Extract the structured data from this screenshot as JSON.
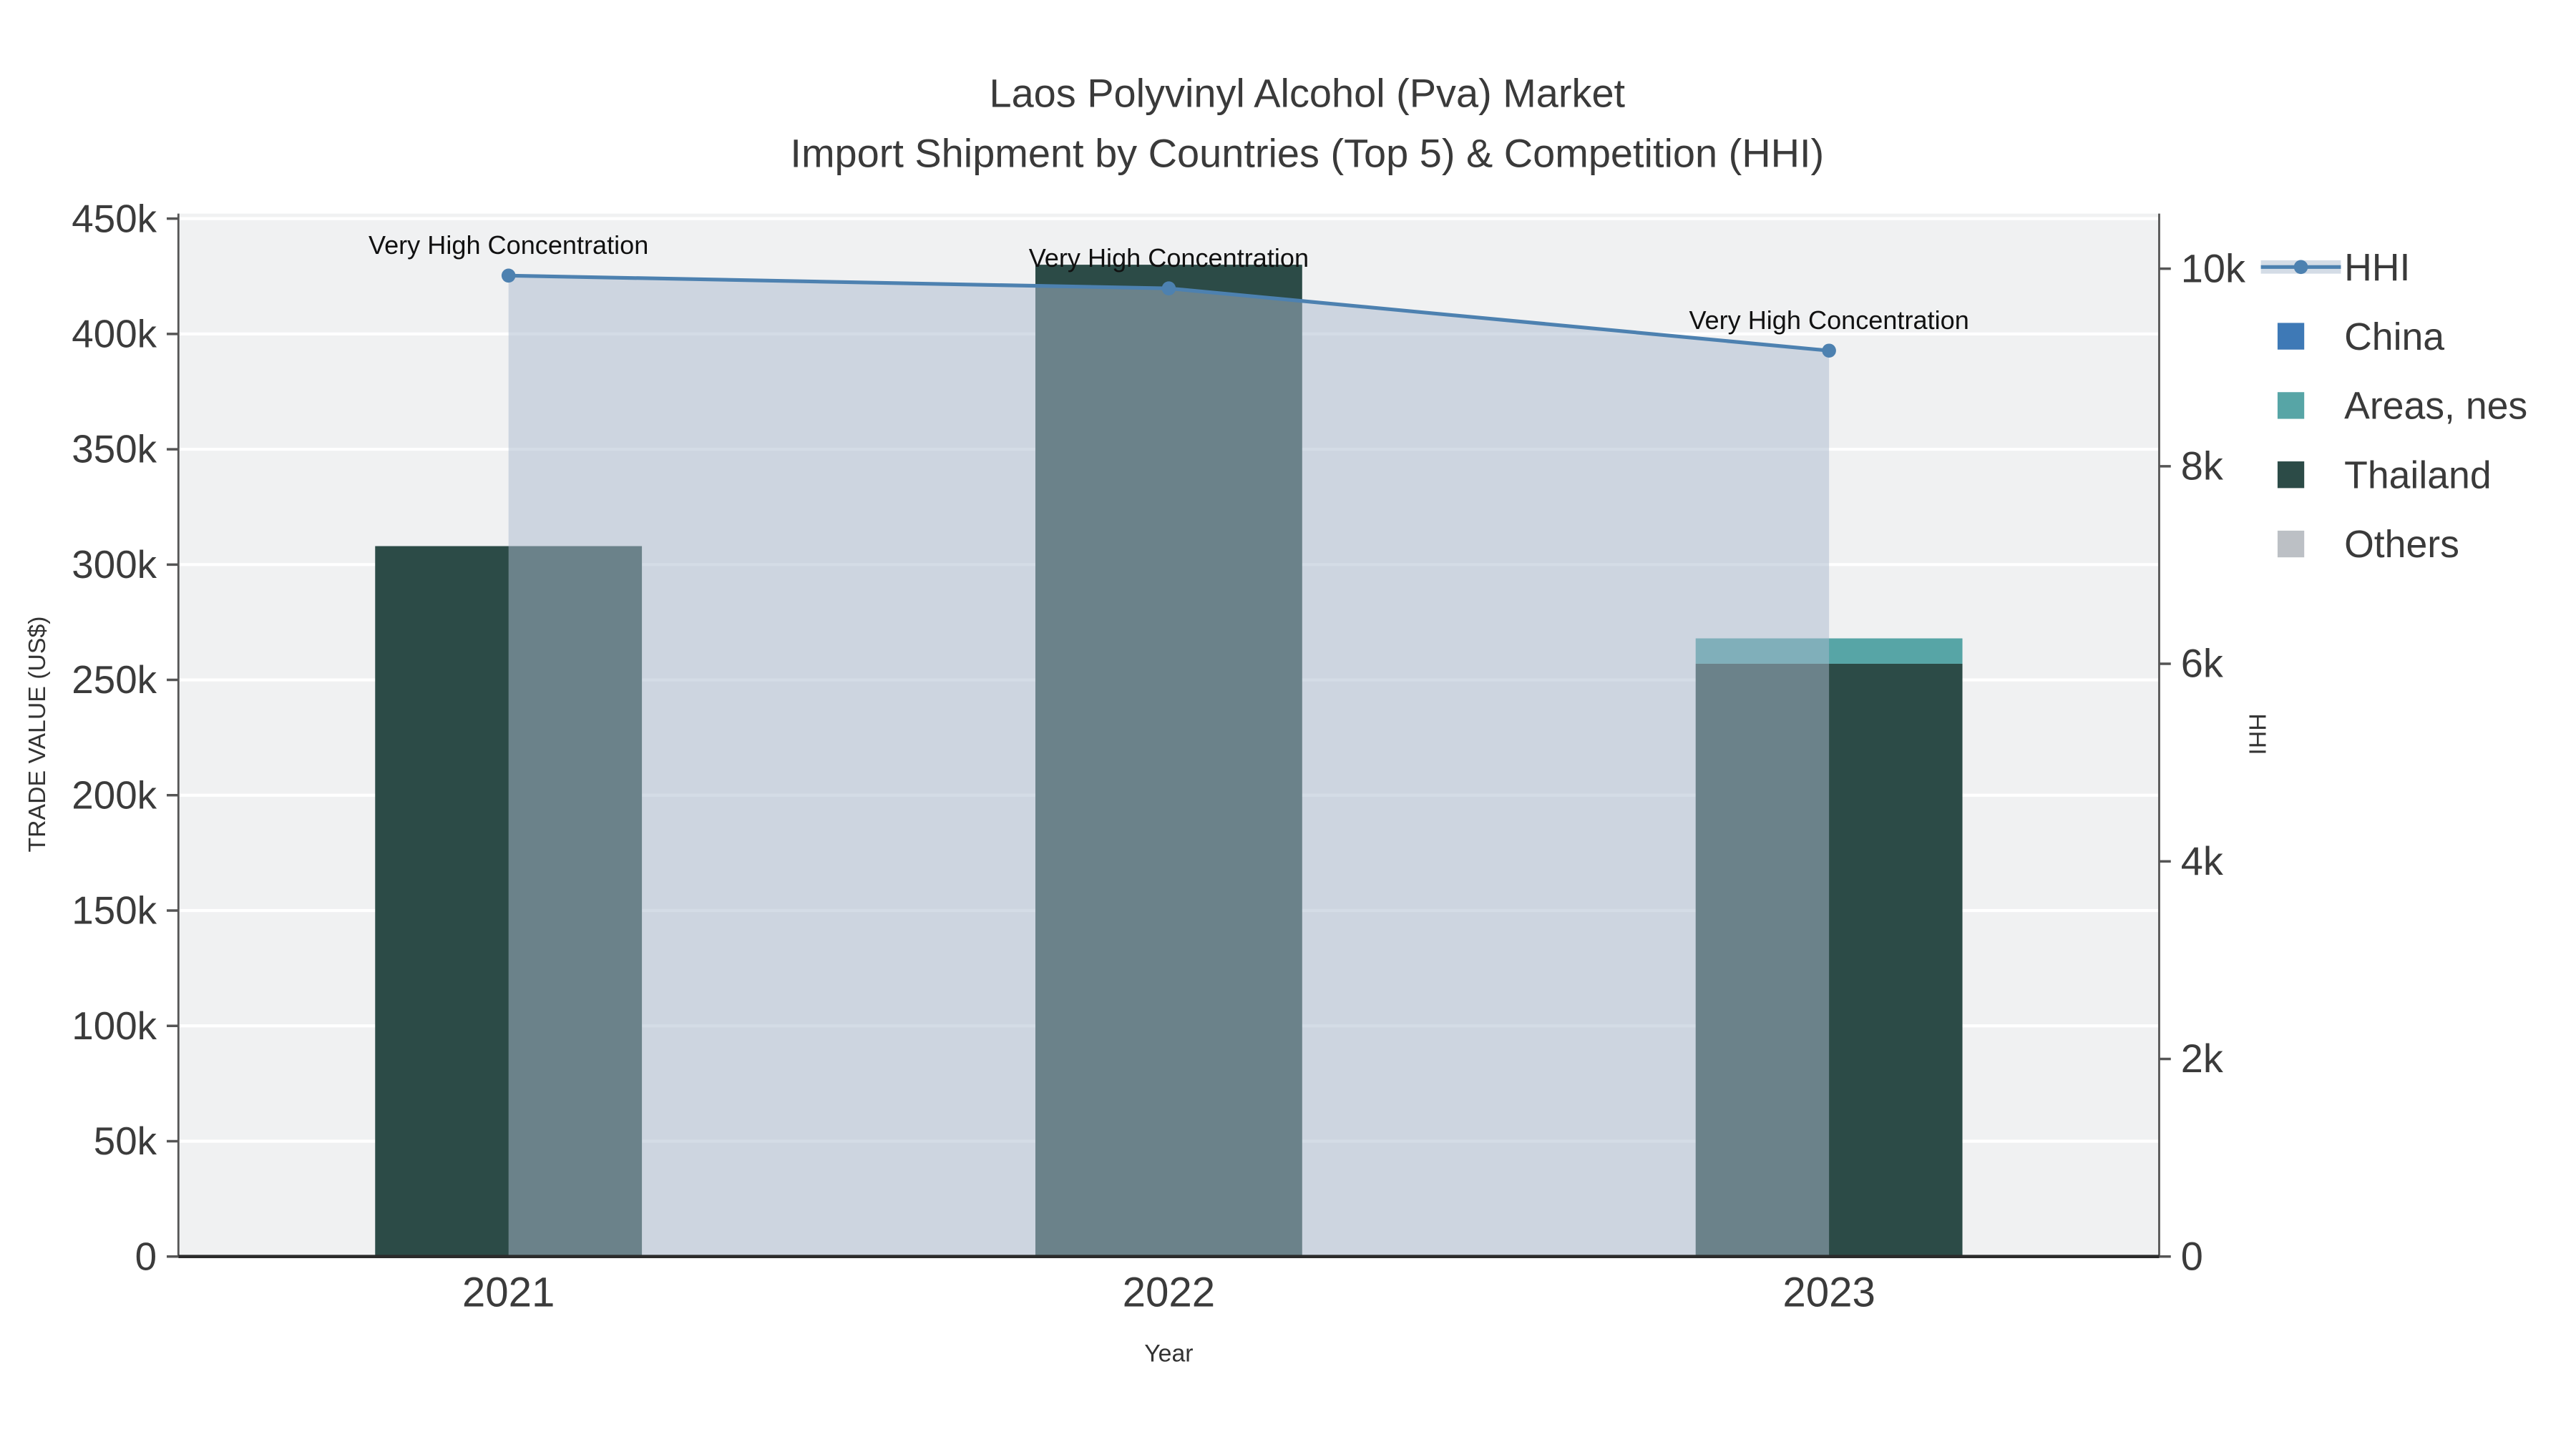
{
  "chart_data": {
    "type": "combo-bar-line",
    "title_line1": "Laos Polyvinyl Alcohol (Pva) Market",
    "title_line2": "Import Shipment by Countries (Top 5) & Competition (HHI)",
    "xlabel": "Year",
    "ylabel_left": "TRADE VALUE (US$)",
    "ylabel_right": "HHI",
    "categories": [
      "2021",
      "2022",
      "2023"
    ],
    "left_axis": {
      "min": 0,
      "max": 450000,
      "tick_values": [
        0,
        50000,
        100000,
        150000,
        200000,
        250000,
        300000,
        350000,
        400000,
        450000
      ],
      "tick_labels": [
        "0",
        "50k",
        "100k",
        "150k",
        "200k",
        "250k",
        "300k",
        "350k",
        "400k",
        "450k"
      ]
    },
    "right_axis": {
      "min": 0,
      "max": 10000,
      "tick_values": [
        0,
        2000,
        4000,
        6000,
        8000,
        10000
      ],
      "tick_labels": [
        "0",
        "2k",
        "4k",
        "6k",
        "8k",
        "10k"
      ]
    },
    "series": [
      {
        "name": "China",
        "color": "#3E79B6",
        "values": [
          0,
          0,
          0
        ]
      },
      {
        "name": "Areas, nes",
        "color": "#57A5A6",
        "values": [
          0,
          0,
          11000
        ]
      },
      {
        "name": "Thailand",
        "color": "#2C4B47",
        "values": [
          308000,
          430000,
          257000
        ]
      },
      {
        "name": "Others",
        "color": "#BCC0C5",
        "values": [
          0,
          0,
          0
        ]
      }
    ],
    "stack_order": [
      "Thailand",
      "Areas, nes",
      "China",
      "Others"
    ],
    "line": {
      "name": "HHI",
      "color": "#4D81B0",
      "area_fill": "#A9BACD",
      "area_opacity": 0.5,
      "values": [
        9930,
        9800,
        9170
      ]
    },
    "annotations": [
      "Very High Concentration",
      "Very High Concentration",
      "Very High Concentration"
    ],
    "legend": {
      "order": [
        "HHI",
        "China",
        "Areas, nes",
        "Thailand",
        "Others"
      ]
    },
    "colors": {
      "plot_bg": "#F0F1F2",
      "grid": "#FFFFFF",
      "axis_text": "#3B3B3B",
      "spine": "#555555",
      "baseline": "#2B2B2B",
      "annotation": "#111111",
      "title": "#3A3A3A"
    }
  }
}
